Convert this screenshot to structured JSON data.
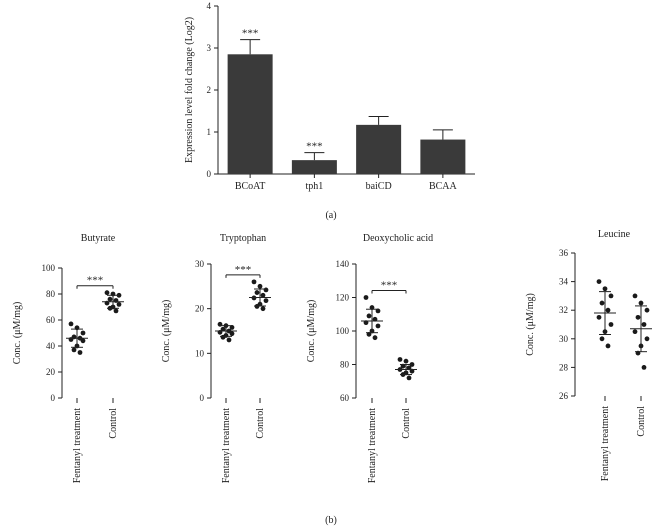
{
  "colors": {
    "bar": "#3a3a3a",
    "axis": "#222222",
    "text": "#222222",
    "point": "#1a1a1a"
  },
  "panel_labels": {
    "a": "(a)",
    "b": "(b)"
  },
  "chart_data": [
    {
      "id": "panel-a",
      "type": "bar",
      "title": "",
      "xlabel": "",
      "ylabel": "Expression level fold change (Log2)",
      "categories": [
        "BCoAT",
        "tph1",
        "baiCD",
        "BCAA"
      ],
      "values": [
        2.85,
        0.33,
        1.17,
        0.82
      ],
      "errors": [
        0.35,
        0.18,
        0.2,
        0.23
      ],
      "significance": [
        "***",
        "***",
        "",
        ""
      ],
      "ylim": [
        0,
        4
      ],
      "yticks": [
        "0",
        "1",
        "2",
        "3",
        "4"
      ]
    },
    {
      "id": "butyrate",
      "type": "scatter",
      "title": "Butyrate",
      "ylabel": "Conc. (μM/mg)",
      "categories": [
        "Fentanyl treatment",
        "Control"
      ],
      "ylim": [
        0,
        100
      ],
      "yticks": [
        "0",
        "20",
        "40",
        "60",
        "80",
        "100"
      ],
      "significance": "***",
      "groups": [
        {
          "name": "Fentanyl treatment",
          "mean": 46,
          "sd": 7,
          "points": [
            57,
            54,
            50,
            47,
            46,
            45,
            44,
            40,
            37,
            35
          ]
        },
        {
          "name": "Control",
          "mean": 74,
          "sd": 5,
          "points": [
            81,
            80,
            79,
            76,
            75,
            73,
            72,
            70,
            69,
            67
          ]
        }
      ]
    },
    {
      "id": "tryptophan",
      "type": "scatter",
      "title": "Tryptophan",
      "ylabel": "Conc. (μM/mg)",
      "categories": [
        "Fentanyl treatment",
        "Control"
      ],
      "ylim": [
        0,
        30
      ],
      "yticks": [
        "0",
        "10",
        "20",
        "30"
      ],
      "significance": "***",
      "groups": [
        {
          "name": "Fentanyl treatment",
          "mean": 15,
          "sd": 1.2,
          "points": [
            16.5,
            16.2,
            15.8,
            15.4,
            15,
            14.7,
            14.4,
            14,
            13.6,
            13
          ]
        },
        {
          "name": "Control",
          "mean": 22.5,
          "sd": 1.9,
          "points": [
            26,
            25,
            24.2,
            23.6,
            23,
            22.4,
            21.8,
            21,
            20.5,
            20
          ]
        }
      ]
    },
    {
      "id": "deoxycholic-acid",
      "type": "scatter",
      "title": "Deoxycholic acid",
      "ylabel": "Conc. (μM/mg)",
      "categories": [
        "Fentanyl treatment",
        "Control"
      ],
      "ylim": [
        60,
        140
      ],
      "yticks": [
        "60",
        "80",
        "100",
        "120",
        "140"
      ],
      "significance": "***",
      "groups": [
        {
          "name": "Fentanyl treatment",
          "mean": 106,
          "sd": 7,
          "points": [
            120,
            114,
            112,
            109,
            107,
            105,
            103,
            100,
            98,
            96
          ]
        },
        {
          "name": "Control",
          "mean": 77,
          "sd": 3,
          "points": [
            83,
            82,
            80,
            79,
            78,
            77,
            76,
            75,
            74,
            72
          ]
        }
      ]
    },
    {
      "id": "leucine",
      "type": "scatter",
      "title": "Leucine",
      "ylabel": "Conc. (μM/mg)",
      "categories": [
        "Fentanyl treatment",
        "Control"
      ],
      "ylim": [
        26,
        36
      ],
      "yticks": [
        "26",
        "28",
        "30",
        "32",
        "34",
        "36"
      ],
      "significance": "",
      "groups": [
        {
          "name": "Fentanyl treatment",
          "mean": 31.8,
          "sd": 1.5,
          "points": [
            34,
            33.5,
            33,
            32.5,
            32,
            31.5,
            31,
            30.5,
            30,
            29.5
          ]
        },
        {
          "name": "Control",
          "mean": 30.7,
          "sd": 1.6,
          "points": [
            33,
            32.5,
            32,
            31.5,
            31,
            30.5,
            30,
            29.5,
            29,
            28
          ]
        }
      ]
    }
  ]
}
